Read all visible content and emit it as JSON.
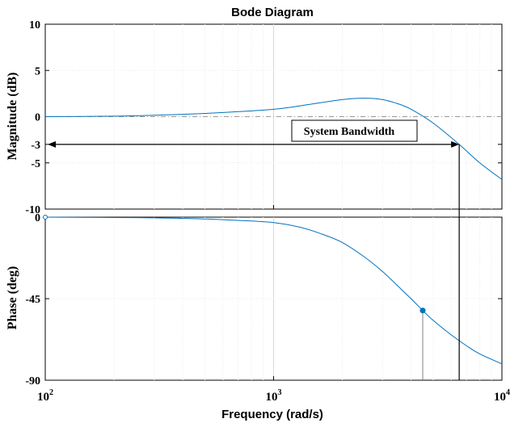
{
  "chart_data": {
    "type": "line",
    "title": "Bode Diagram",
    "xlabel": "Frequency  (rad/s)",
    "xscale": "log",
    "xlim": [
      100,
      10000
    ],
    "x_ticks": [
      {
        "base": "10",
        "exp": "2"
      },
      {
        "base": "10",
        "exp": "3"
      },
      {
        "base": "10",
        "exp": "4"
      }
    ],
    "grid": true,
    "magnitude": {
      "ylabel": "Magnitude (dB)",
      "ylim": [
        -10,
        10
      ],
      "y_ticks": [
        "10",
        "5",
        "0",
        "-3",
        "-5",
        "-10"
      ],
      "y_tick_values": [
        10,
        5,
        0,
        -3,
        -5,
        -10
      ],
      "color": "#0072BD",
      "x": [
        100,
        200,
        300,
        500,
        1000,
        1500,
        2000,
        2500,
        3000,
        3500,
        4000,
        5000,
        6500,
        8000,
        10000
      ],
      "y": [
        0.0,
        0.05,
        0.15,
        0.35,
        0.8,
        1.4,
        1.85,
        2.0,
        1.85,
        1.4,
        0.8,
        -0.7,
        -3.0,
        -5.0,
        -6.8
      ]
    },
    "phase": {
      "ylabel": "Phase (deg)",
      "ylim": [
        -90,
        0
      ],
      "y_ticks": [
        "0",
        "-45",
        "-90"
      ],
      "y_tick_values": [
        0,
        -45,
        -90
      ],
      "color": "#0072BD",
      "x": [
        100,
        200,
        300,
        500,
        700,
        1000,
        1300,
        1600,
        2000,
        2500,
        3000,
        3500,
        4000,
        4500,
        5000,
        6000,
        7000,
        8000,
        10000
      ],
      "y": [
        0.0,
        -0.2,
        -0.4,
        -1.0,
        -1.8,
        -3.0,
        -5.5,
        -9.0,
        -14.0,
        -22.0,
        -30.0,
        -38.0,
        -45.0,
        -51.5,
        -57.0,
        -65.0,
        -71.0,
        -75.5,
        -81.0
      ]
    },
    "annotations": {
      "bandwidth_label": "System Bandwidth",
      "bandwidth_freq": 6500,
      "bandwidth_level_db": -3,
      "marker_freq": 4500,
      "marker_phase": -51.5,
      "reference_line_color": "#999999"
    }
  }
}
